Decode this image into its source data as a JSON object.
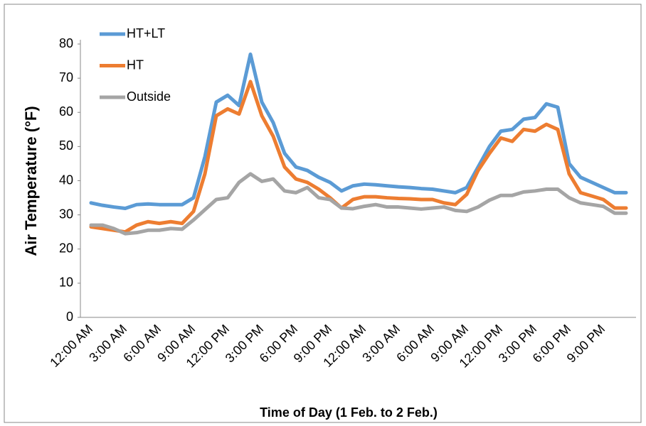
{
  "chart_data": {
    "type": "line",
    "y_label": "Air Temperature (°F)",
    "x_label": "Time of Day (1 Feb. to 2 Feb.)",
    "categories": [
      "12:00 AM",
      null,
      null,
      "3:00 AM",
      null,
      null,
      "6:00 AM",
      null,
      null,
      "9:00 AM",
      null,
      null,
      "12:00 PM",
      null,
      null,
      "3:00 PM",
      null,
      null,
      "6:00 PM",
      null,
      null,
      "9:00 PM",
      null,
      null,
      "12:00 AM",
      null,
      null,
      "3:00 AM",
      null,
      null,
      "6:00 AM",
      null,
      null,
      "9:00 AM",
      null,
      null,
      "12:00 PM",
      null,
      null,
      "3:00 PM",
      null,
      null,
      "6:00 PM",
      null,
      null,
      "9:00 PM",
      null,
      null
    ],
    "series": [
      {
        "name": "HT+LT",
        "color": "#5b9bd5",
        "values": [
          33.5,
          32.8,
          32.3,
          31.9,
          33,
          33.2,
          33,
          33,
          33,
          35,
          47,
          63,
          65,
          62,
          77,
          63,
          57,
          48,
          44,
          43,
          41,
          39.5,
          37,
          38.5,
          39,
          38.8,
          38.5,
          38.2,
          38,
          37.7,
          37.5,
          37,
          36.5,
          38,
          44,
          50,
          54.5,
          55,
          58,
          58.5,
          62.5,
          61.5,
          45,
          41,
          39.5,
          38,
          36.5,
          36.5
        ]
      },
      {
        "name": "HT",
        "color": "#ed7d31",
        "values": [
          26.5,
          26,
          25.5,
          25,
          27,
          28,
          27.5,
          28,
          27.5,
          31,
          42,
          59,
          61,
          59.5,
          69,
          59,
          53,
          44,
          40.5,
          39.5,
          37.5,
          35,
          32,
          34.5,
          35.3,
          35.3,
          35,
          34.8,
          34.7,
          34.5,
          34.5,
          33.5,
          33,
          36,
          43,
          48,
          52.5,
          51.5,
          55,
          54.5,
          56.5,
          55,
          42,
          36.5,
          35.5,
          34.5,
          32,
          32
        ]
      },
      {
        "name": "Outside",
        "color": "#a5a5a5",
        "values": [
          27,
          27,
          26,
          24.5,
          24.8,
          25.5,
          25.5,
          26,
          25.8,
          28.5,
          31.5,
          34.5,
          35,
          39.5,
          42,
          39.8,
          40.5,
          37,
          36.5,
          38,
          35,
          34.5,
          32,
          31.8,
          32.5,
          33,
          32.3,
          32.3,
          32,
          31.7,
          32,
          32.3,
          31.3,
          31,
          32.3,
          34.3,
          35.7,
          35.7,
          36.7,
          37,
          37.5,
          37.5,
          35,
          33.5,
          33,
          32.5,
          30.5,
          30.5
        ]
      }
    ],
    "ylim": [
      0,
      80
    ],
    "yticks": [
      0,
      10,
      20,
      30,
      40,
      50,
      60,
      70,
      80
    ],
    "grid": false,
    "legend": "top-left"
  }
}
